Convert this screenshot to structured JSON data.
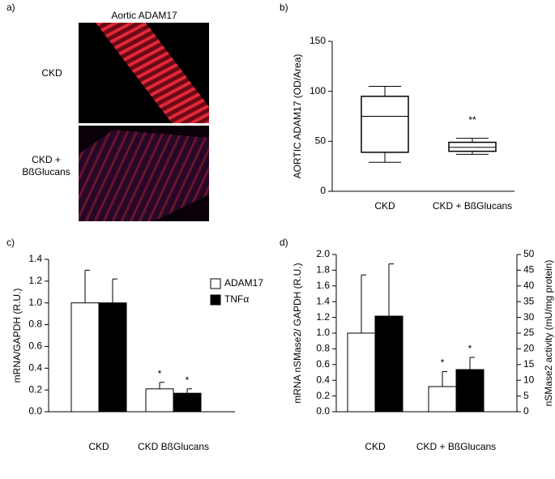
{
  "panel_a": {
    "label": "a)",
    "title": "Aortic ADAM17",
    "rows": [
      "CKD",
      "CKD +\nBßGlucans"
    ]
  },
  "chart_data": [
    {
      "type": "box",
      "panel_label": "b)",
      "ylabel": "AORTIC ADAM17 (OD/Area)",
      "categories": [
        "CKD",
        "CKD + BßGlucans"
      ],
      "boxes": [
        {
          "whislo": 29,
          "q1": 39,
          "median": 75,
          "q3": 95,
          "whishi": 105
        },
        {
          "whislo": 37,
          "q1": 40,
          "median": 44,
          "q3": 49,
          "whishi": 53
        }
      ],
      "significance": [
        null,
        "**"
      ],
      "color": "#ffffff",
      "ylim": [
        0,
        150
      ],
      "yticks": [
        0,
        50,
        100,
        150
      ]
    },
    {
      "type": "bar",
      "panel_label": "c)",
      "ylabel": "mRNA/GAPDH (R.U.)",
      "categories": [
        "CKD",
        "CKD BßGlucans"
      ],
      "legend": "upper right",
      "series": [
        {
          "name": "ADAM17",
          "color": "#ffffff",
          "values": [
            1.0,
            0.21
          ],
          "errors": [
            0.3,
            0.06
          ],
          "significance": [
            null,
            "*"
          ]
        },
        {
          "name": "TNFα",
          "color": "#000000",
          "values": [
            1.0,
            0.17
          ],
          "errors": [
            0.22,
            0.04
          ],
          "significance": [
            null,
            "*"
          ]
        }
      ],
      "ylim": [
        0,
        1.4
      ],
      "yticks": [
        {
          "value": 0,
          "label": "0.0"
        },
        0.2,
        0.4,
        0.6,
        0.8,
        {
          "value": 1,
          "label": "1.0"
        },
        1.2,
        1.4
      ]
    },
    {
      "type": "bar",
      "panel_label": "d)",
      "ylabel": "mRNA nSMase2/ GAPDH (R.U.)",
      "y2label": "nSMase2 activity (mU/mg protein)",
      "categories": [
        "CKD",
        "CKD + BßGlucans"
      ],
      "series": [
        {
          "color": "#ffffff",
          "values": [
            1.0,
            0.32
          ],
          "errors": [
            0.74,
            0.19
          ],
          "significance": [
            null,
            "*"
          ]
        },
        {
          "color": "#000000",
          "axis": "y2",
          "values": [
            30.4,
            13.4
          ],
          "errors": [
            16.6,
            3.9
          ],
          "significance": [
            null,
            "*"
          ]
        }
      ],
      "ylim": [
        0,
        2
      ],
      "yticks": [
        {
          "value": 0,
          "label": "0.0"
        },
        0.2,
        0.4,
        0.6,
        0.8,
        {
          "value": 1,
          "label": "1.0"
        },
        1.2,
        1.4,
        1.6,
        1.8,
        {
          "value": 2,
          "label": "2.0"
        }
      ],
      "y2lim": [
        0,
        50
      ],
      "y2ticks": [
        0,
        5,
        10,
        15,
        20,
        25,
        30,
        35,
        40,
        45,
        50
      ]
    }
  ]
}
